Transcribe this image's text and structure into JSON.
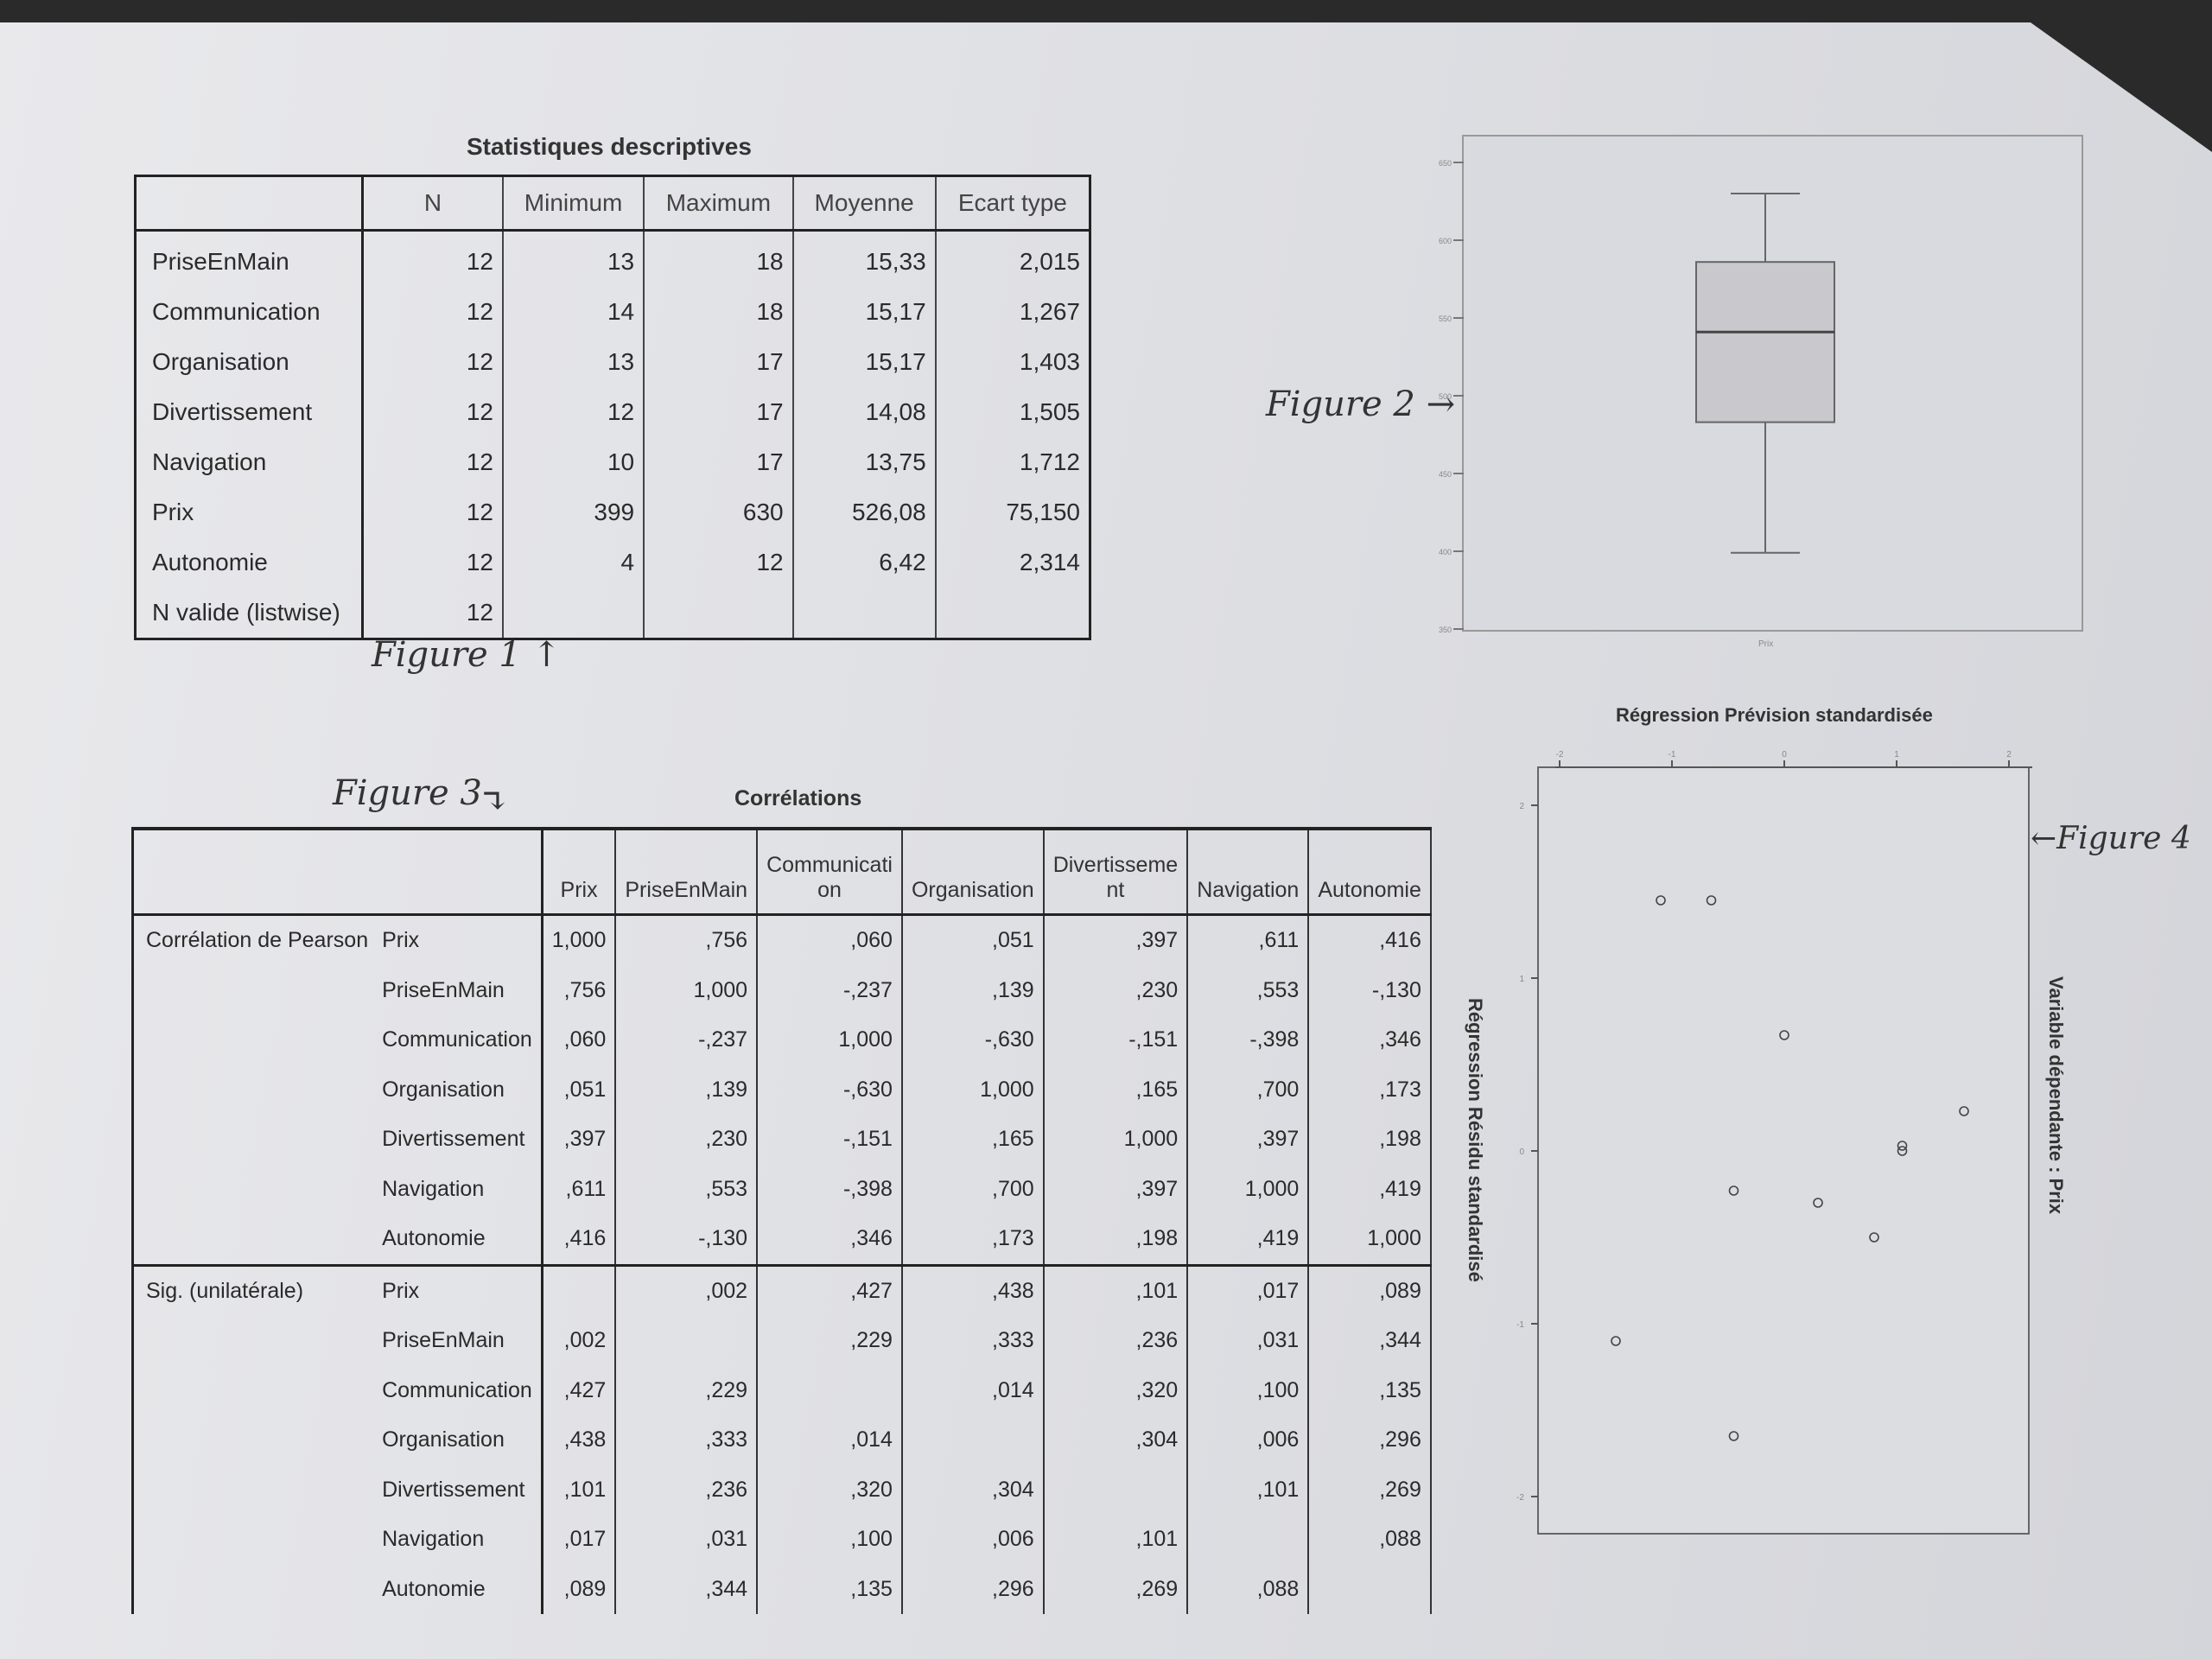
{
  "descriptive_stats": {
    "title": "Statistiques descriptives",
    "columns": [
      "",
      "N",
      "Minimum",
      "Maximum",
      "Moyenne",
      "Ecart type"
    ],
    "rows": [
      [
        "PriseEnMain",
        "12",
        "13",
        "18",
        "15,33",
        "2,015"
      ],
      [
        "Communication",
        "12",
        "14",
        "18",
        "15,17",
        "1,267"
      ],
      [
        "Organisation",
        "12",
        "13",
        "17",
        "15,17",
        "1,403"
      ],
      [
        "Divertissement",
        "12",
        "12",
        "17",
        "14,08",
        "1,505"
      ],
      [
        "Navigation",
        "12",
        "10",
        "17",
        "13,75",
        "1,712"
      ],
      [
        "Prix",
        "12",
        "399",
        "630",
        "526,08",
        "75,150"
      ],
      [
        "Autonomie",
        "12",
        "4",
        "12",
        "6,42",
        "2,314"
      ],
      [
        "N valide (listwise)",
        "12",
        "",
        "",
        "",
        ""
      ]
    ]
  },
  "annotations": {
    "figure1": "Figure 1 ↑",
    "figure2": "Figure 2 →",
    "figure3": "Figure 3",
    "figure4": "←Figure 4"
  },
  "correlations": {
    "title": "Corrélations",
    "columns": [
      "",
      "",
      "Prix",
      "PriseEnMain",
      "Communication",
      "Organisation",
      "Divertissement",
      "Navigation",
      "Autonomie"
    ],
    "column_display": [
      "Prix",
      "PriseEnMain",
      "Communicati on",
      "Organisation",
      "Divertisseme nt",
      "Navigation",
      "Autonomie"
    ],
    "groups": [
      {
        "label": "Corrélation de Pearson",
        "rows": [
          [
            "Prix",
            "1,000",
            ",756",
            ",060",
            ",051",
            ",397",
            ",611",
            ",416"
          ],
          [
            "PriseEnMain",
            ",756",
            "1,000",
            "-,237",
            ",139",
            ",230",
            ",553",
            "-,130"
          ],
          [
            "Communication",
            ",060",
            "-,237",
            "1,000",
            "-,630",
            "-,151",
            "-,398",
            ",346"
          ],
          [
            "Organisation",
            ",051",
            ",139",
            "-,630",
            "1,000",
            ",165",
            ",700",
            ",173"
          ],
          [
            "Divertissement",
            ",397",
            ",230",
            "-,151",
            ",165",
            "1,000",
            ",397",
            ",198"
          ],
          [
            "Navigation",
            ",611",
            ",553",
            "-,398",
            ",700",
            ",397",
            "1,000",
            ",419"
          ],
          [
            "Autonomie",
            ",416",
            "-,130",
            ",346",
            ",173",
            ",198",
            ",419",
            "1,000"
          ]
        ]
      },
      {
        "label": "Sig. (unilatérale)",
        "rows": [
          [
            "Prix",
            "",
            ",002",
            ",427",
            ",438",
            ",101",
            ",017",
            ",089"
          ],
          [
            "PriseEnMain",
            ",002",
            "",
            ",229",
            ",333",
            ",236",
            ",031",
            ",344"
          ],
          [
            "Communication",
            ",427",
            ",229",
            "",
            ",014",
            ",320",
            ",100",
            ",135"
          ],
          [
            "Organisation",
            ",438",
            ",333",
            ",014",
            "",
            ",304",
            ",006",
            ",296"
          ],
          [
            "Divertissement",
            ",101",
            ",236",
            ",320",
            ",304",
            "",
            ",101",
            ",269"
          ],
          [
            "Navigation",
            ",017",
            ",031",
            ",100",
            ",006",
            ",101",
            "",
            ",088"
          ],
          [
            "Autonomie",
            ",089",
            ",344",
            ",135",
            ",296",
            ",269",
            ",088",
            ""
          ]
        ]
      }
    ]
  },
  "boxplot": {
    "variable": "Prix",
    "min": 399,
    "q1": 483,
    "median": 541,
    "q3": 586,
    "max": 630,
    "ylim": [
      350,
      650
    ],
    "ticks": [
      650,
      600,
      550,
      500,
      450,
      400,
      350
    ]
  },
  "scatter": {
    "title": "Régression Prévision standardisée",
    "ylabel": "Régression Résidu standardisé",
    "right_label": "Variable dépendante : Prix",
    "xlim": [
      -2,
      2
    ],
    "ylim": [
      -2,
      2
    ],
    "x_ticks": [
      "-2",
      "-1",
      "0",
      "1",
      "2"
    ],
    "y_ticks": [
      "2",
      "1",
      "0",
      "-1",
      "-2"
    ],
    "points": [
      {
        "x": -1.1,
        "y": 1.45
      },
      {
        "x": -0.65,
        "y": 1.45
      },
      {
        "x": -1.5,
        "y": -1.1
      },
      {
        "x": 0.0,
        "y": 0.67
      },
      {
        "x": -0.45,
        "y": -0.23
      },
      {
        "x": 0.3,
        "y": -0.3
      },
      {
        "x": 0.8,
        "y": -0.5
      },
      {
        "x": 1.05,
        "y": 0.0
      },
      {
        "x": 1.05,
        "y": 0.03
      },
      {
        "x": 1.6,
        "y": 0.23
      },
      {
        "x": -0.45,
        "y": -1.65
      }
    ]
  }
}
